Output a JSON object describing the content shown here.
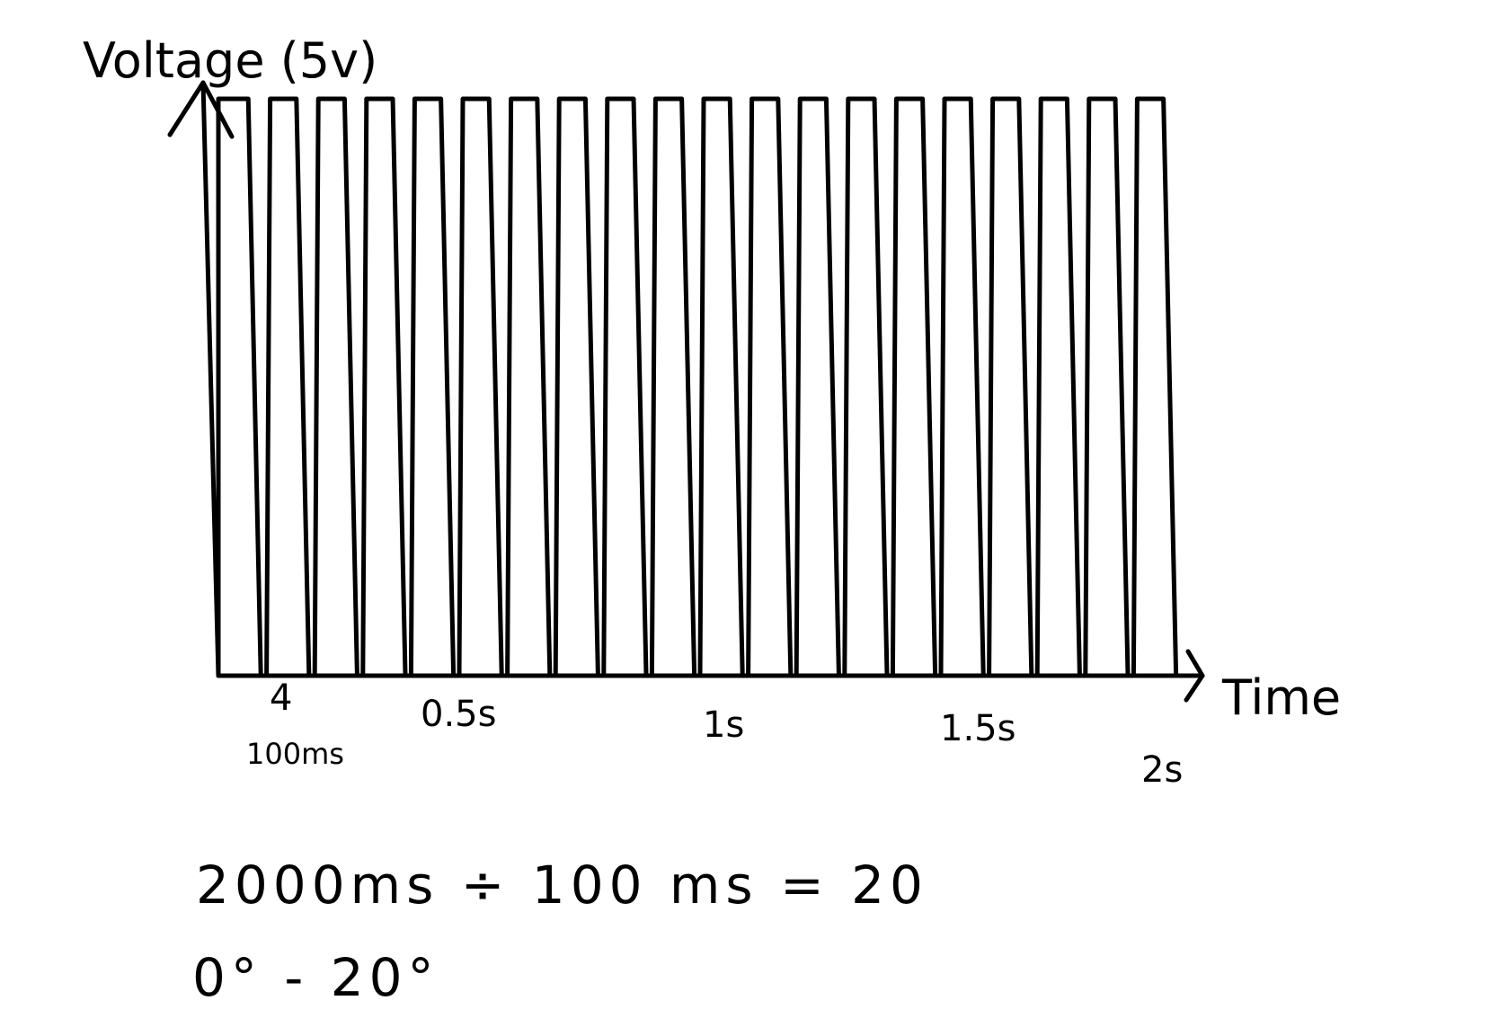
{
  "diagram": {
    "y_axis_label": "Voltage (5v)",
    "x_axis_label": "Time",
    "x_ticks": [
      {
        "label": "4",
        "time_s": 0.1
      },
      {
        "label": "100ms",
        "time_s": 0.1
      },
      {
        "label": "0.5s",
        "time_s": 0.5
      },
      {
        "label": "1s",
        "time_s": 1.0
      },
      {
        "label": "1.5s",
        "time_s": 1.5
      },
      {
        "label": "2s",
        "time_s": 2.0
      }
    ],
    "waveform": {
      "type": "square-wave",
      "high_voltage_v": 5,
      "period_ms": 100,
      "pulse_count": 20,
      "duration_s": 2.0
    },
    "notes": [
      "2000ms ÷ 100 ms = 20",
      "0° - 20°"
    ],
    "colors": {
      "ink": "#000000",
      "background": "#ffffff"
    }
  }
}
